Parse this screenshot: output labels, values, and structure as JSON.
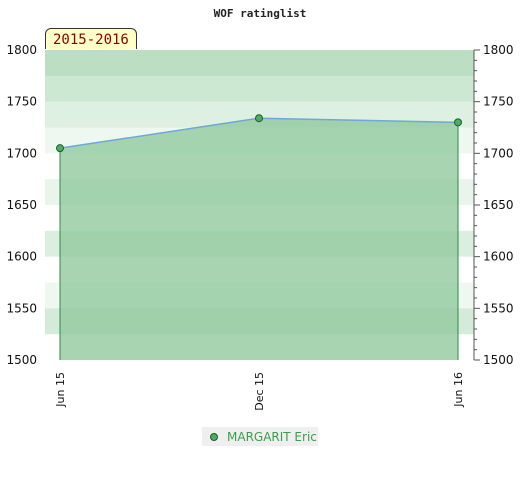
{
  "chart_data": {
    "type": "line",
    "title": "WOF ratinglist",
    "period_label": "2015-2016",
    "x_categories": [
      "Jun 15",
      "Dec 15",
      "Jun 16"
    ],
    "y_ticks": [
      1500,
      1550,
      1600,
      1650,
      1700,
      1750,
      1800
    ],
    "ylim": [
      1500,
      1800
    ],
    "series": [
      {
        "name": "MARGARIT Eric",
        "points": [
          {
            "x": "Jun 15",
            "y": 1705
          },
          {
            "x": "Dec 15",
            "y": 1734
          },
          {
            "x": "Jun 16",
            "y": 1730
          }
        ]
      }
    ],
    "colors": {
      "line": "#6ea8d8",
      "fill": "#8fc89c",
      "marker": "#4cae64",
      "legend_text": "#3aa04a",
      "badge_bg": "#ffffc8",
      "badge_text": "#8b0000"
    },
    "legend_position": "bottom-center",
    "grid": true
  }
}
